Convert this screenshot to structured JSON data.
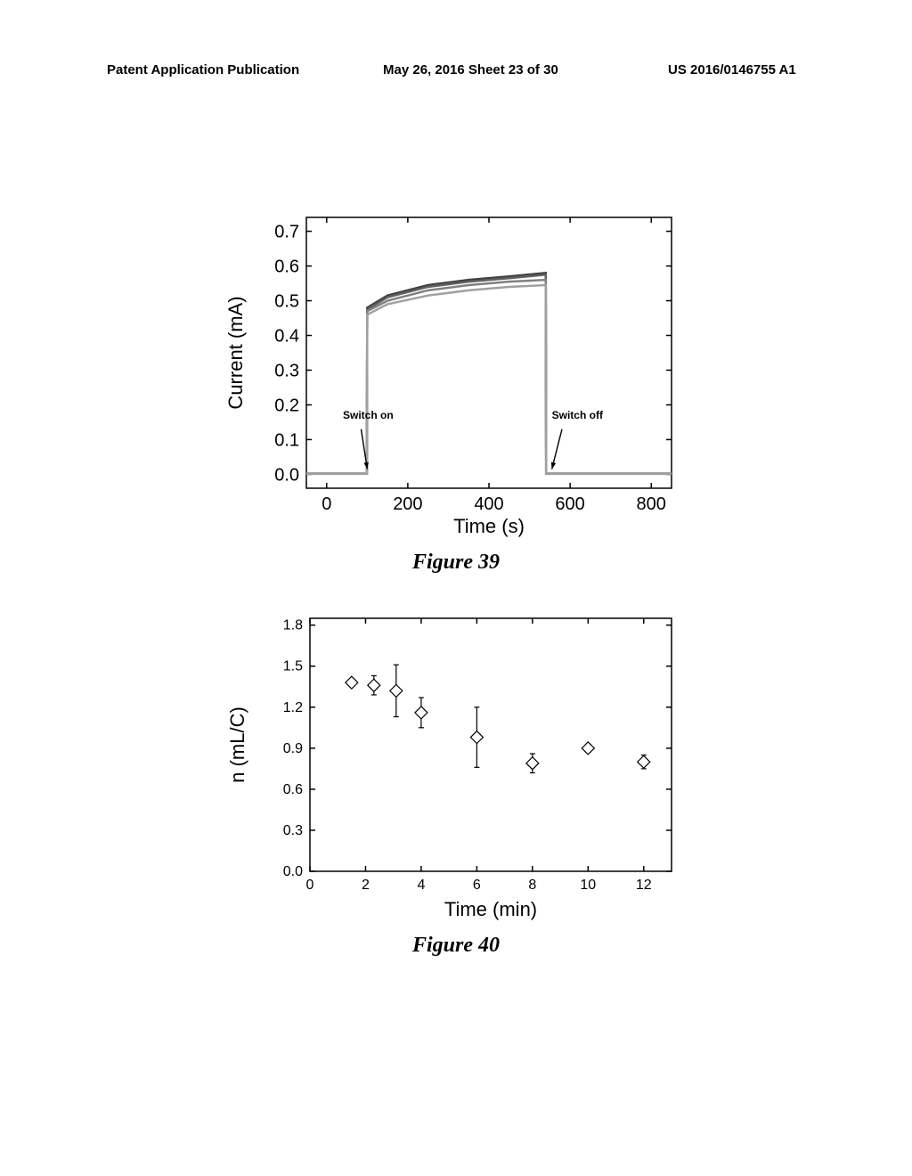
{
  "header": {
    "left": "Patent Application Publication",
    "middle": "May 26, 2016  Sheet 23 of 30",
    "right": "US 2016/0146755 A1"
  },
  "figure39": {
    "type": "line",
    "caption": "Figure 39",
    "xlabel": "Time (s)",
    "ylabel": "Current (mA)",
    "xlim": [
      -50,
      850
    ],
    "ylim": [
      -0.04,
      0.74
    ],
    "xticks": [
      0,
      200,
      400,
      600,
      800
    ],
    "yticks": [
      0.0,
      0.1,
      0.2,
      0.3,
      0.4,
      0.5,
      0.6,
      0.7
    ],
    "ytick_labels": [
      "0.0",
      "0.1",
      "0.2",
      "0.3",
      "0.4",
      "0.5",
      "0.6",
      "0.7"
    ],
    "plot_bg": "#ffffff",
    "axis_color": "#000000",
    "label_fontsize": 22,
    "tick_fontsize": 20,
    "line_width": 2.5,
    "series": [
      {
        "color": "#404040",
        "points": [
          [
            -50,
            0.002
          ],
          [
            99,
            0.002
          ],
          [
            100,
            0.48
          ],
          [
            150,
            0.515
          ],
          [
            250,
            0.545
          ],
          [
            350,
            0.56
          ],
          [
            450,
            0.57
          ],
          [
            540,
            0.58
          ],
          [
            541,
            0.002
          ],
          [
            850,
            0.002
          ]
        ]
      },
      {
        "color": "#606060",
        "points": [
          [
            -50,
            0.002
          ],
          [
            99,
            0.002
          ],
          [
            100,
            0.475
          ],
          [
            150,
            0.51
          ],
          [
            250,
            0.54
          ],
          [
            350,
            0.555
          ],
          [
            450,
            0.565
          ],
          [
            540,
            0.575
          ],
          [
            541,
            0.002
          ],
          [
            850,
            0.002
          ]
        ]
      },
      {
        "color": "#808080",
        "points": [
          [
            -50,
            0.002
          ],
          [
            99,
            0.002
          ],
          [
            100,
            0.47
          ],
          [
            150,
            0.5
          ],
          [
            250,
            0.53
          ],
          [
            350,
            0.545
          ],
          [
            450,
            0.555
          ],
          [
            540,
            0.56
          ],
          [
            541,
            0.002
          ],
          [
            850,
            0.002
          ]
        ]
      },
      {
        "color": "#a0a0a0",
        "points": [
          [
            -50,
            0.002
          ],
          [
            99,
            0.002
          ],
          [
            100,
            0.46
          ],
          [
            150,
            0.49
          ],
          [
            250,
            0.515
          ],
          [
            350,
            0.53
          ],
          [
            450,
            0.54
          ],
          [
            540,
            0.545
          ],
          [
            541,
            0.002
          ],
          [
            850,
            0.002
          ]
        ]
      }
    ],
    "annotations": [
      {
        "text": "Switch on",
        "x_text": 40,
        "y_text": 0.16,
        "arrow_from": [
          85,
          0.13
        ],
        "arrow_to": [
          100,
          0.015
        ]
      },
      {
        "text": "Switch off",
        "x_text": 555,
        "y_text": 0.16,
        "arrow_from": [
          580,
          0.13
        ],
        "arrow_to": [
          555,
          0.015
        ]
      }
    ]
  },
  "figure40": {
    "type": "scatter-errorbar",
    "caption": "Figure 40",
    "xlabel": "Time (min)",
    "ylabel": "n (mL/C)",
    "xlim": [
      0,
      13
    ],
    "ylim": [
      0.0,
      1.85
    ],
    "xticks": [
      0,
      2,
      4,
      6,
      8,
      10,
      12
    ],
    "yticks": [
      0.0,
      0.3,
      0.6,
      0.9,
      1.2,
      1.5,
      1.8
    ],
    "ytick_labels": [
      "0.0",
      "0.3",
      "0.6",
      "0.9",
      "1.2",
      "1.5",
      "1.8"
    ],
    "plot_bg": "#ffffff",
    "axis_color": "#000000",
    "marker_color": "#ffffff",
    "marker_edge": "#000000",
    "marker_shape": "diamond",
    "marker_size": 7,
    "errorbar_color": "#000000",
    "errorbar_width": 1.2,
    "cap_width": 6,
    "label_fontsize": 22,
    "tick_fontsize": 16,
    "points": [
      {
        "x": 1.5,
        "y": 1.38,
        "err": 0.02
      },
      {
        "x": 2.3,
        "y": 1.36,
        "err": 0.07
      },
      {
        "x": 3.1,
        "y": 1.32,
        "err": 0.19
      },
      {
        "x": 4.0,
        "y": 1.16,
        "err": 0.11
      },
      {
        "x": 6.0,
        "y": 0.98,
        "err": 0.22
      },
      {
        "x": 8.0,
        "y": 0.79,
        "err": 0.07
      },
      {
        "x": 10.0,
        "y": 0.9,
        "err": 0.03
      },
      {
        "x": 12.0,
        "y": 0.8,
        "err": 0.05
      }
    ]
  }
}
